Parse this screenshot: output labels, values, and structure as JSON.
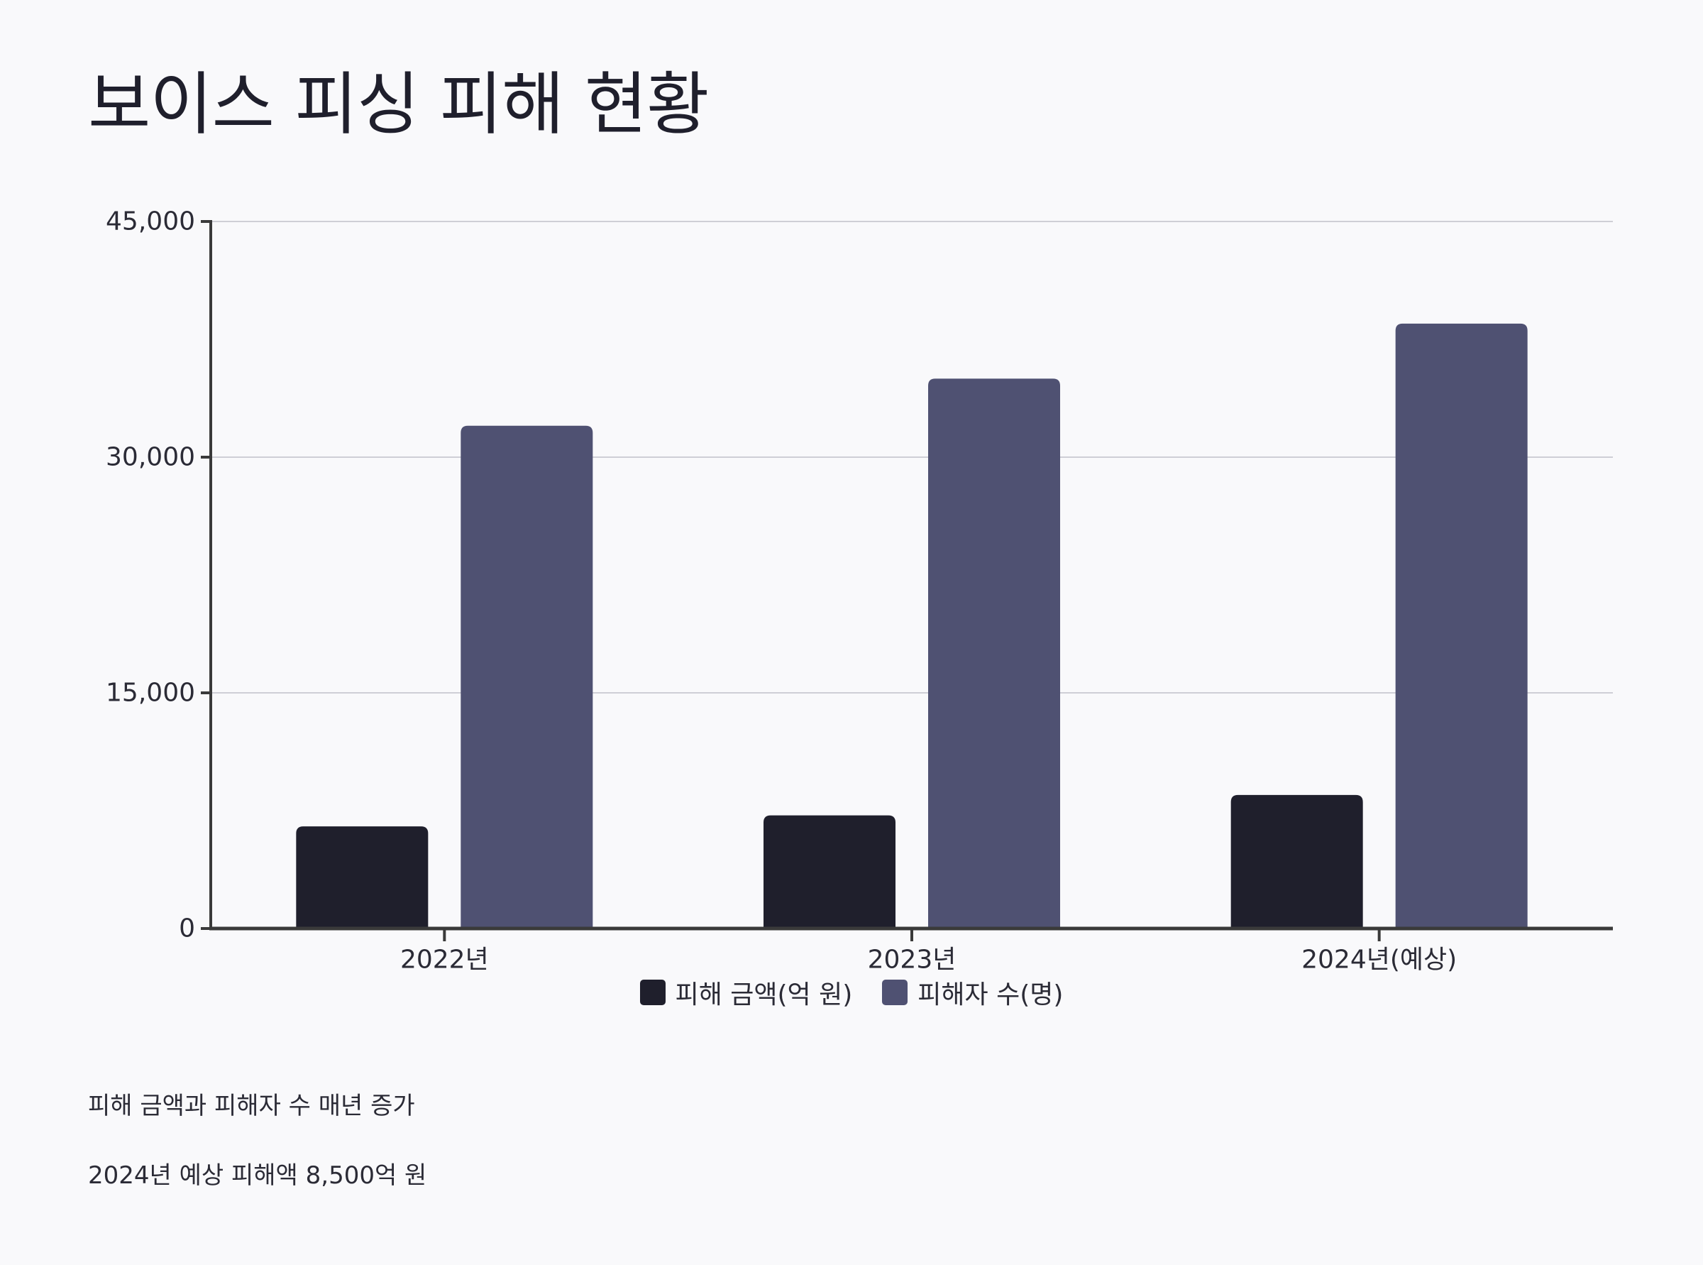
{
  "title": "보이스 피싱 피해 현황",
  "notes": [
    "피해 금액과 피해자 수 매년 증가",
    "2024년 예상 피해액 8,500억 원"
  ],
  "chart_data": {
    "type": "bar",
    "title": "보이스 피싱 피해 현황",
    "categories": [
      "2022년",
      "2023년",
      "2024년(예상)"
    ],
    "series": [
      {
        "name": "피해 금액(억 원)",
        "values": [
          6500,
          7200,
          8500
        ],
        "color": "#1f1f2c"
      },
      {
        "name": "피해자 수(명)",
        "values": [
          32000,
          35000,
          38500
        ],
        "color": "#4f5172"
      }
    ],
    "ylim": [
      0,
      45000
    ],
    "yticks": [
      0,
      15000,
      30000,
      45000
    ],
    "ytick_labels": [
      "0",
      "15,000",
      "30,000",
      "45,000"
    ],
    "xlabel": "",
    "ylabel": "",
    "grid": true,
    "legend": "bottom-center"
  }
}
